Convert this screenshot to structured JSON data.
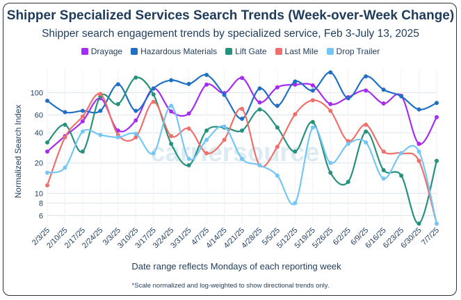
{
  "title": "Shipper Specialized Services Search Trends (Week-over-Week Change)",
  "subtitle": "Shipper search engagement trends by specialized service, Feb 3-July 13, 2025",
  "footnote": "*Scale normalized and log-weighted to show directional trends only.",
  "watermark": "carriersource",
  "chart_data": {
    "type": "line",
    "title": "Shipper Specialized Services Search Trends (Week-over-Week Change)",
    "xlabel": "Date range reflects Mondays of each reporting week",
    "ylabel": "Normalized Search Index",
    "y_scale": "log",
    "ylim": [
      5,
      170
    ],
    "y_ticks": [
      6,
      8,
      10,
      20,
      40,
      60,
      100
    ],
    "grid": true,
    "legend_position": "top",
    "categories": [
      "2/3/25",
      "2/10/25",
      "2/17/25",
      "2/24/25",
      "3/3/25",
      "3/10/25",
      "3/17/25",
      "3/24/25",
      "3/31/25",
      "4/7/25",
      "4/14/25",
      "4/21/25",
      "4/28/25",
      "5/5/25",
      "5/12/25",
      "5/19/25",
      "5/26/25",
      "6/2/25",
      "6/9/25",
      "6/16/25",
      "6/23/25",
      "6/30/25",
      "7/7/25"
    ],
    "series": [
      {
        "name": "Drayage",
        "color": "#a52cf0",
        "values": [
          26,
          37,
          52,
          88,
          42,
          53,
          110,
          65,
          62,
          120,
          99,
          140,
          80,
          113,
          120,
          118,
          77,
          90,
          105,
          78,
          93,
          31,
          57
        ]
      },
      {
        "name": "Hazardous Materials",
        "color": "#1f6fc4",
        "values": [
          83,
          64,
          66,
          66,
          121,
          66,
          110,
          133,
          122,
          150,
          95,
          55,
          110,
          74,
          129,
          105,
          159,
          88,
          145,
          107,
          92,
          68,
          79
        ]
      },
      {
        "name": "Lift Gate",
        "color": "#26917c",
        "values": [
          32,
          48,
          26,
          92,
          77,
          141,
          96,
          31,
          19,
          42,
          45,
          42,
          68,
          45,
          26,
          51,
          16,
          13,
          41,
          17,
          15,
          5,
          21
        ]
      },
      {
        "name": "Last Mile",
        "color": "#ef6f6a",
        "values": [
          12,
          36,
          58,
          97,
          38,
          36,
          81,
          37,
          44,
          25,
          34,
          69,
          19,
          29,
          61,
          84,
          66,
          33,
          48,
          26,
          25,
          21,
          5
        ]
      },
      {
        "name": "Drop Trailer",
        "color": "#74c6f7",
        "values": [
          16,
          18,
          41,
          38,
          36,
          39,
          25,
          74,
          22,
          34,
          46,
          22,
          19,
          15,
          8,
          45,
          20,
          31,
          32,
          14,
          25,
          26,
          5
        ]
      }
    ]
  }
}
